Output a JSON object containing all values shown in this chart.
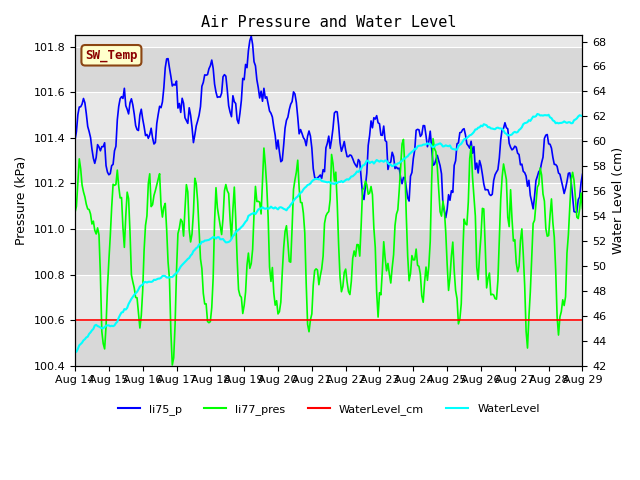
{
  "title": "Air Pressure and Water Level",
  "xlabel": "",
  "ylabel_left": "Pressure (kPa)",
  "ylabel_right": "Water Level (cm)",
  "ylim_left": [
    100.4,
    101.85
  ],
  "ylim_right": [
    42,
    68.5
  ],
  "yticks_left": [
    100.4,
    100.6,
    100.8,
    101.0,
    101.2,
    101.4,
    101.6,
    101.8
  ],
  "yticks_right": [
    42,
    44,
    46,
    48,
    50,
    52,
    54,
    56,
    58,
    60,
    62,
    64,
    66,
    68
  ],
  "xtick_labels": [
    "Aug 14",
    "Aug 15",
    "Aug 16",
    "Aug 17",
    "Aug 18",
    "Aug 19",
    "Aug 20",
    "Aug 21",
    "Aug 22",
    "Aug 23",
    "Aug 24",
    "Aug 25",
    "Aug 26",
    "Aug 27",
    "Aug 28",
    "Aug 29"
  ],
  "n_points": 361,
  "xlim": [
    0,
    360
  ],
  "background_color": "#ffffff",
  "plot_bg_color": "#e8e8e8",
  "legend_entries": [
    "li75_p",
    "li77_pres",
    "WaterLevel_cm",
    "WaterLevel"
  ],
  "legend_colors": [
    "blue",
    "lime",
    "red",
    "cyan"
  ],
  "annotation_text": "SW_Temp",
  "annotation_color": "#8b0000",
  "annotation_bg": "#ffffcc",
  "annotation_border": "#8b4513",
  "grid_color": "#ffffff",
  "stripe_colors": [
    "#d8d8d8",
    "#e8e8e8"
  ]
}
